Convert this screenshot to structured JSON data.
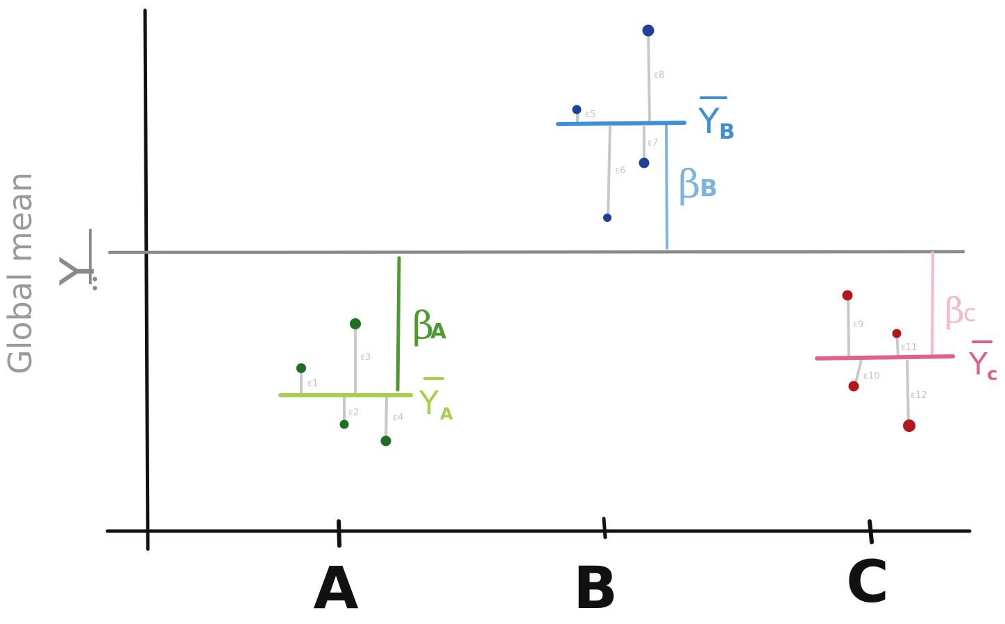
{
  "axes": {
    "y_axis_color": "#111111",
    "x_axis_color": "#111111"
  },
  "categories": [
    "A",
    "B",
    "C"
  ],
  "global_mean": {
    "label": "Global mean",
    "symbol": "Y",
    "subscript": "••",
    "color": "#8a8a8a"
  },
  "groups": [
    {
      "name": "A",
      "mean_symbol": "Y",
      "mean_subscript": "A",
      "mean_color": "#a6cf4a",
      "beta_symbol": "β",
      "beta_subscript": "A",
      "beta_color": "#4f9a30",
      "point_color": "#1e6e23",
      "residual_labels": [
        "ε1",
        "ε2",
        "ε3",
        "ε4"
      ]
    },
    {
      "name": "B",
      "mean_symbol": "Y",
      "mean_subscript": "B",
      "mean_color": "#3f8fd6",
      "beta_symbol": "β",
      "beta_subscript": "B",
      "beta_color": "#7fb3df",
      "point_color": "#1f3f9a",
      "residual_labels": [
        "ε5",
        "ε6",
        "ε7",
        "ε8"
      ]
    },
    {
      "name": "C",
      "mean_symbol": "Y",
      "mean_subscript": "c",
      "mean_color": "#e0608a",
      "beta_symbol": "β",
      "beta_subscript": "c",
      "beta_color": "#f6b9c9",
      "point_color": "#b3161b",
      "residual_labels": [
        "ε9",
        "ε10",
        "ε11",
        "ε12"
      ]
    }
  ]
}
